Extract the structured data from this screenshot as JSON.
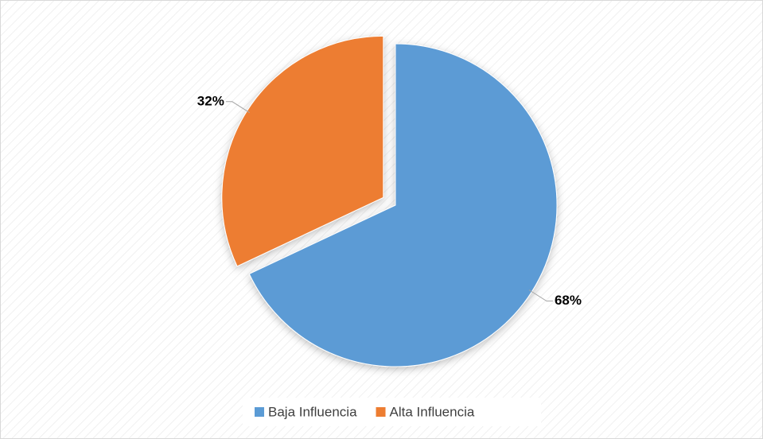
{
  "chart_data": {
    "type": "pie",
    "categories": [
      "Baja Influencia",
      "Alta Influencia"
    ],
    "values": [
      68,
      32
    ],
    "value_labels": [
      "68%",
      "32%"
    ],
    "colors": [
      "#5b9bd5",
      "#ed7d31"
    ],
    "legend": "bottom"
  }
}
